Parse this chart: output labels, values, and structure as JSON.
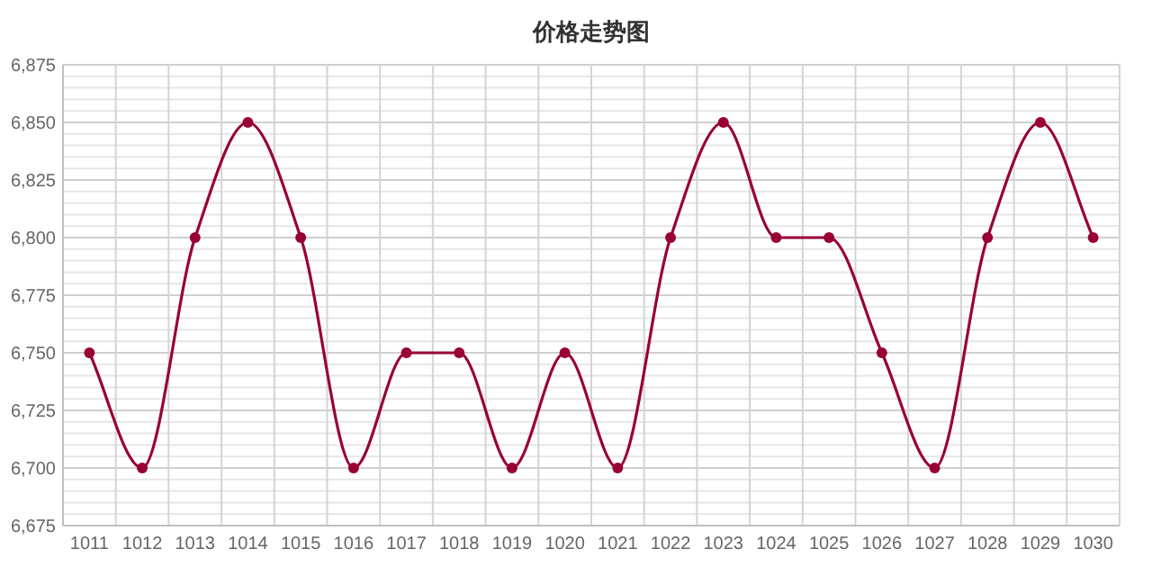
{
  "chart_data": {
    "type": "line",
    "title": "价格走势图",
    "categories": [
      "1011",
      "1012",
      "1013",
      "1014",
      "1015",
      "1016",
      "1017",
      "1018",
      "1019",
      "1020",
      "1021",
      "1022",
      "1023",
      "1024",
      "1025",
      "1026",
      "1027",
      "1028",
      "1029",
      "1030"
    ],
    "series": [
      {
        "color": "#990033",
        "values": [
          6750,
          6700,
          6800,
          6850,
          6800,
          6700,
          6750,
          6750,
          6700,
          6750,
          6700,
          6800,
          6850,
          6800,
          6800,
          6750,
          6700,
          6800,
          6850,
          6800
        ]
      }
    ],
    "ylim": [
      6675,
      6875
    ],
    "yticks": [
      {
        "value": 6675,
        "label": "6,675"
      },
      {
        "value": 6700,
        "label": "6,700"
      },
      {
        "value": 6725,
        "label": "6,725"
      },
      {
        "value": 6750,
        "label": "6,750"
      },
      {
        "value": 6775,
        "label": "6,775"
      },
      {
        "value": 6800,
        "label": "6,800"
      },
      {
        "value": 6825,
        "label": "6,825"
      },
      {
        "value": 6850,
        "label": "6,850"
      },
      {
        "value": 6875,
        "label": "6,875"
      }
    ],
    "grid": true,
    "marker": "circle",
    "line_style": "solid"
  }
}
